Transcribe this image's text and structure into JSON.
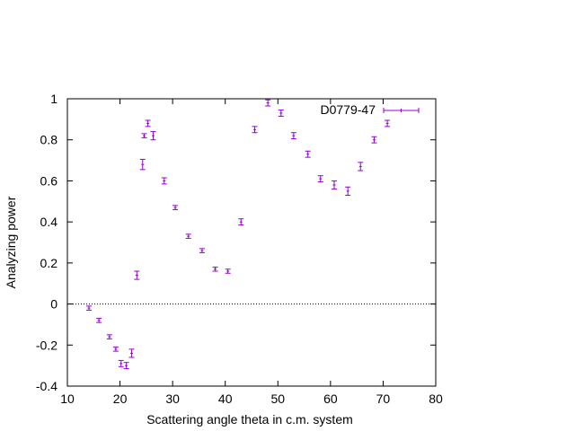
{
  "chart_data": {
    "type": "scatter",
    "title": "",
    "xlabel": "Scattering angle theta in c.m. system",
    "ylabel": "Analyzing power",
    "xlim": [
      10,
      80
    ],
    "ylim": [
      -0.4,
      1.0
    ],
    "x_ticks": [
      10,
      20,
      30,
      40,
      50,
      60,
      70,
      80
    ],
    "y_ticks": [
      -0.4,
      -0.2,
      0,
      0.2,
      0.4,
      0.6,
      0.8,
      1
    ],
    "x_tick_labels": [
      "10",
      "20",
      "30",
      "40",
      "50",
      "60",
      "70",
      "80"
    ],
    "y_tick_labels": [
      "-0.4",
      "-0.2",
      "0",
      "0.2",
      "0.4",
      "0.6",
      "0.8",
      "1"
    ],
    "grid": false,
    "zero_line": true,
    "legend_position": "top-right",
    "series": [
      {
        "name": "D0779-47",
        "color": "#9400d3",
        "points": [
          {
            "x": 14.1,
            "y": -0.02,
            "err": 0.01
          },
          {
            "x": 16.0,
            "y": -0.08,
            "err": 0.01
          },
          {
            "x": 18.0,
            "y": -0.16,
            "err": 0.01
          },
          {
            "x": 19.2,
            "y": -0.22,
            "err": 0.01
          },
          {
            "x": 20.2,
            "y": -0.29,
            "err": 0.015
          },
          {
            "x": 21.2,
            "y": -0.3,
            "err": 0.015
          },
          {
            "x": 22.2,
            "y": -0.24,
            "err": 0.02
          },
          {
            "x": 23.2,
            "y": 0.14,
            "err": 0.02
          },
          {
            "x": 24.3,
            "y": 0.68,
            "err": 0.025
          },
          {
            "x": 24.6,
            "y": 0.82,
            "err": 0.01
          },
          {
            "x": 25.3,
            "y": 0.88,
            "err": 0.015
          },
          {
            "x": 26.3,
            "y": 0.82,
            "err": 0.02
          },
          {
            "x": 28.4,
            "y": 0.6,
            "err": 0.015
          },
          {
            "x": 30.5,
            "y": 0.47,
            "err": 0.01
          },
          {
            "x": 33.0,
            "y": 0.33,
            "err": 0.01
          },
          {
            "x": 35.6,
            "y": 0.26,
            "err": 0.01
          },
          {
            "x": 38.1,
            "y": 0.17,
            "err": 0.01
          },
          {
            "x": 40.5,
            "y": 0.16,
            "err": 0.01
          },
          {
            "x": 43.0,
            "y": 0.4,
            "err": 0.015
          },
          {
            "x": 45.6,
            "y": 0.85,
            "err": 0.015
          },
          {
            "x": 48.1,
            "y": 0.98,
            "err": 0.015
          },
          {
            "x": 50.6,
            "y": 0.93,
            "err": 0.015
          },
          {
            "x": 53.0,
            "y": 0.82,
            "err": 0.015
          },
          {
            "x": 55.7,
            "y": 0.73,
            "err": 0.015
          },
          {
            "x": 58.1,
            "y": 0.61,
            "err": 0.015
          },
          {
            "x": 60.7,
            "y": 0.58,
            "err": 0.02
          },
          {
            "x": 63.3,
            "y": 0.55,
            "err": 0.02
          },
          {
            "x": 65.7,
            "y": 0.67,
            "err": 0.02
          },
          {
            "x": 68.3,
            "y": 0.8,
            "err": 0.015
          },
          {
            "x": 70.8,
            "y": 0.88,
            "err": 0.015
          }
        ]
      }
    ]
  }
}
